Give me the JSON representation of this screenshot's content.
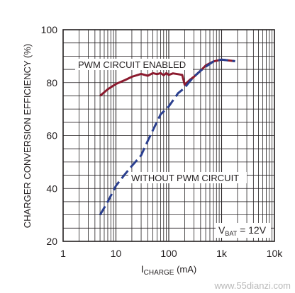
{
  "chart_data": {
    "type": "line",
    "title": "",
    "xlabel_main": "I",
    "xlabel_sub": "CHARGE",
    "xlabel_unit": " (mA)",
    "ylabel": "CHARGER CONVERSION EFFICIENCY (%)",
    "xscale": "log",
    "xlim": [
      1,
      10000
    ],
    "ylim": [
      20,
      100
    ],
    "x_tick_labels": [
      "1",
      "10",
      "100",
      "1k",
      "10k"
    ],
    "y_tick_labels": [
      "20",
      "40",
      "60",
      "80",
      "100"
    ],
    "y_ticks": [
      20,
      40,
      60,
      80,
      100
    ],
    "grid": true,
    "series": [
      {
        "name": "PWM CIRCUIT ENABLED",
        "style": "solid",
        "color": "#8b1a2e",
        "x": [
          5,
          7,
          10,
          15,
          20,
          30,
          40,
          50,
          60,
          70,
          80,
          90,
          100,
          120,
          150,
          180,
          200,
          250,
          300,
          400,
          500,
          700,
          1000,
          1500,
          1800
        ],
        "y": [
          75,
          77.5,
          79.5,
          81,
          82.2,
          83.3,
          82.6,
          83.6,
          83.2,
          83.6,
          82.8,
          83.6,
          82.9,
          83.5,
          83.2,
          82.9,
          79.2,
          81,
          82.2,
          84.5,
          86.5,
          88,
          88.7,
          88.3,
          88.1
        ]
      },
      {
        "name": "WITHOUT PWM CIRCUIT",
        "style": "dashed",
        "color": "#2a3f8f",
        "x": [
          5,
          7,
          10,
          15,
          20,
          30,
          40,
          50,
          70,
          100,
          150,
          200,
          250,
          300,
          400,
          500,
          700,
          1000,
          1500,
          1800
        ],
        "y": [
          30,
          35,
          41,
          45.5,
          48.5,
          52.5,
          58,
          62,
          68,
          71,
          76,
          78,
          80.5,
          82.2,
          84.5,
          86,
          88,
          88.7,
          88.3,
          88.1
        ]
      }
    ],
    "annotations": {
      "pwm_label": "PWM CIRCUIT ENABLED",
      "without_label": "WITHOUT PWM CIRCUIT",
      "vbat_main": "V",
      "vbat_sub": "BAT",
      "vbat_rest": " = 12V"
    }
  },
  "watermark": "www.55dianzi.com"
}
